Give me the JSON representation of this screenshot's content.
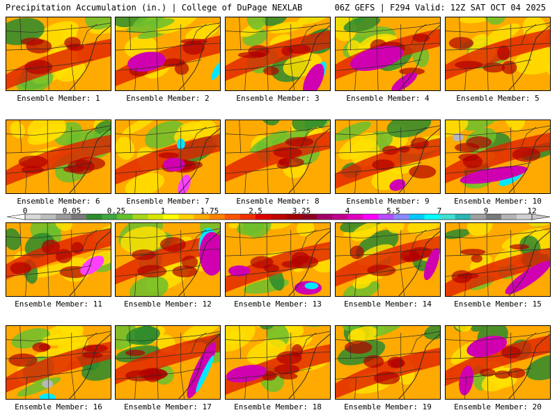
{
  "header": {
    "title": "Precipitation Accumulation (in.) | College of DuPage NEXLAB",
    "run_info": "06Z GEFS | F294 Valid: 12Z SAT OCT 04 2025"
  },
  "colorbar": {
    "tick_labels": [
      "0",
      "0.05",
      "0.25",
      "1",
      "1.75",
      "2.5",
      "3.25",
      "4",
      "5.5",
      "7",
      "9",
      "12"
    ],
    "colors": [
      "#d9d9d9",
      "#bdbdbd",
      "#9a9a9a",
      "#7a7a7a",
      "#2e8b2e",
      "#3fa83f",
      "#64c22e",
      "#a8d61a",
      "#d8e600",
      "#ffff00",
      "#ffd200",
      "#ffaa00",
      "#ff8200",
      "#ff5500",
      "#f03000",
      "#dd0000",
      "#c00000",
      "#a20000",
      "#8b0020",
      "#a0006a",
      "#c0008c",
      "#e000c0",
      "#ff00ff",
      "#b84dff",
      "#8a8aff",
      "#00c8ff",
      "#00ffff",
      "#40e0d0",
      "#2ab4b4",
      "#a0a0a0",
      "#7a7a7a",
      "#b4b4b4",
      "#d0d0d0"
    ]
  },
  "panels": [
    {
      "label": "Ensemble Member: 1"
    },
    {
      "label": "Ensemble Member: 2"
    },
    {
      "label": "Ensemble Member: 3"
    },
    {
      "label": "Ensemble Member: 4"
    },
    {
      "label": "Ensemble Member: 5"
    },
    {
      "label": "Ensemble Member: 6"
    },
    {
      "label": "Ensemble Member: 7"
    },
    {
      "label": "Ensemble Member: 8"
    },
    {
      "label": "Ensemble Member: 9"
    },
    {
      "label": "Ensemble Member: 10"
    },
    {
      "label": "Ensemble Member: 11"
    },
    {
      "label": "Ensemble Member: 12"
    },
    {
      "label": "Ensemble Member: 13"
    },
    {
      "label": "Ensemble Member: 14"
    },
    {
      "label": "Ensemble Member: 15"
    },
    {
      "label": "Ensemble Member: 16"
    },
    {
      "label": "Ensemble Member: 17"
    },
    {
      "label": "Ensemble Member: 18"
    },
    {
      "label": "Ensemble Member: 19"
    },
    {
      "label": "Ensemble Member: 20"
    }
  ],
  "map_colors": {
    "base": "#ffaa00",
    "yellow": "#ffe000",
    "green": "#6cbf2e",
    "darkgreen": "#2e8b2e",
    "red": "#e02000",
    "darkred": "#b00000",
    "magenta": "#d000b0",
    "pink": "#ff40ff",
    "cyan": "#00e8ff",
    "lightgray": "#b8b8b8",
    "lines": "#2a2a2a"
  }
}
